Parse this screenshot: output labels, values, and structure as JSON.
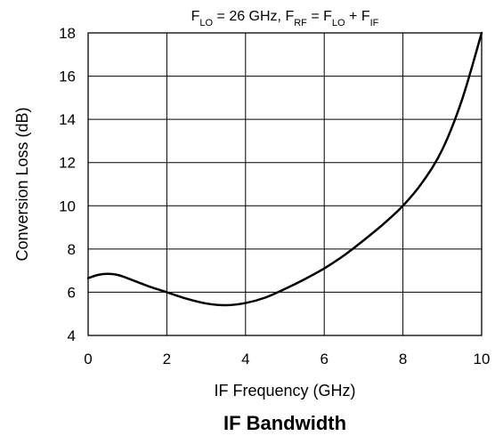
{
  "chart_data": {
    "type": "line",
    "title": {
      "parts": [
        {
          "text": "F"
        },
        {
          "text": "LO",
          "sub": true
        },
        {
          "text": " = 26 GHz, F"
        },
        {
          "text": "RF",
          "sub": true
        },
        {
          "text": " = F"
        },
        {
          "text": "LO",
          "sub": true
        },
        {
          "text": " + F"
        },
        {
          "text": "IF",
          "sub": true
        }
      ]
    },
    "caption": "IF Bandwidth",
    "xlabel": "IF Frequency (GHz)",
    "ylabel": "Conversion Loss (dB)",
    "xlim": [
      0,
      10
    ],
    "ylim": [
      4,
      18
    ],
    "xticks": [
      0,
      2,
      4,
      6,
      8,
      10
    ],
    "yticks": [
      4,
      6,
      8,
      10,
      12,
      14,
      16,
      18
    ],
    "grid": true,
    "series": [
      {
        "x": [
          0,
          0.25,
          0.5,
          0.75,
          1,
          1.5,
          2,
          2.5,
          3,
          3.5,
          4,
          4.5,
          5,
          5.5,
          6,
          6.5,
          7,
          7.5,
          8,
          8.5,
          9,
          9.5,
          10
        ],
        "y": [
          6.65,
          6.8,
          6.85,
          6.8,
          6.65,
          6.3,
          6.0,
          5.7,
          5.48,
          5.4,
          5.5,
          5.75,
          6.15,
          6.6,
          7.1,
          7.7,
          8.4,
          9.15,
          10.0,
          11.1,
          12.6,
          14.9,
          18.0
        ]
      }
    ]
  }
}
